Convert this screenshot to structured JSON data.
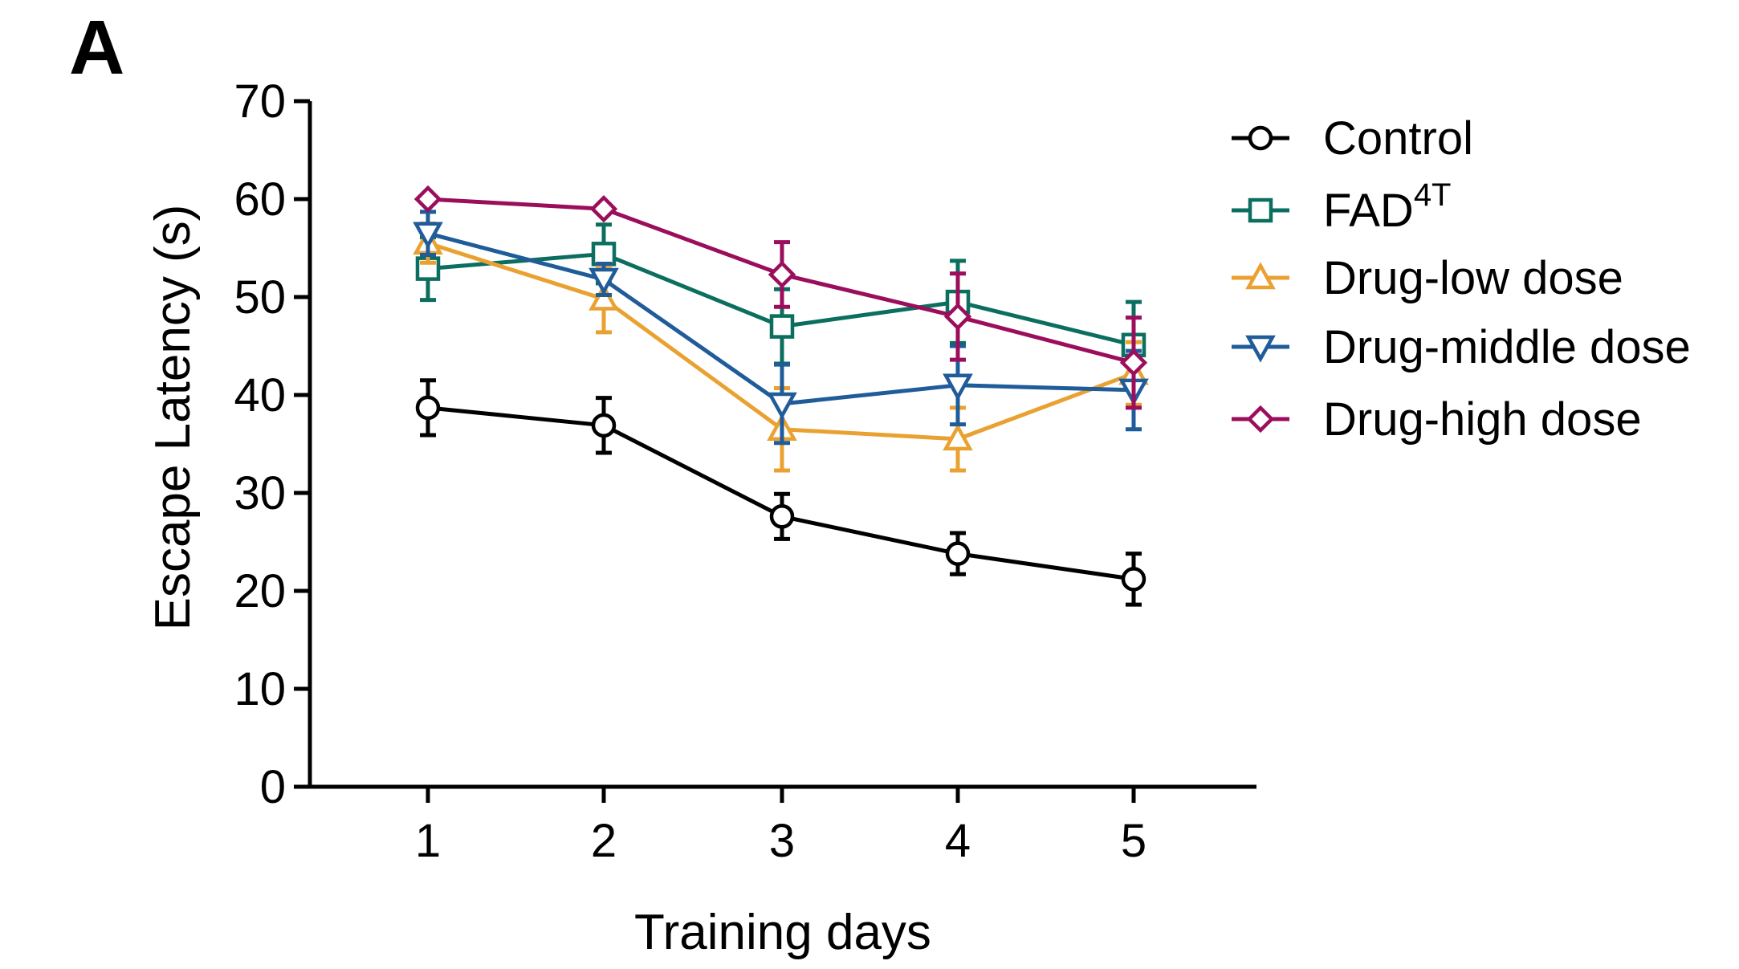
{
  "panel_label": "A",
  "chart_data": {
    "type": "line",
    "title": "",
    "xlabel": "Training days",
    "ylabel": "Escape Latency (s)",
    "x": [
      1,
      2,
      3,
      4,
      5
    ],
    "xticks": [
      "1",
      "2",
      "3",
      "4",
      "5"
    ],
    "ylim": [
      0,
      70
    ],
    "yticks": [
      0,
      10,
      20,
      30,
      40,
      50,
      60,
      70
    ],
    "ytick_labels": [
      "0",
      "10",
      "20",
      "30",
      "40",
      "50",
      "60",
      "70"
    ],
    "grid": false,
    "legend_position": "right",
    "series": [
      {
        "name": "Control",
        "name_base": "Control",
        "name_sup": "",
        "color": "#000000",
        "marker": "circle",
        "values": [
          38.7,
          36.9,
          27.6,
          23.8,
          21.2
        ],
        "errors": [
          2.8,
          2.8,
          2.3,
          2.1,
          2.6
        ]
      },
      {
        "name": "FAD4T",
        "name_base": "FAD",
        "name_sup": "4T",
        "color": "#0B6E5F",
        "marker": "square",
        "values": [
          52.9,
          54.4,
          47.0,
          49.5,
          45.1
        ],
        "errors": [
          3.2,
          3.0,
          3.8,
          4.2,
          4.4
        ]
      },
      {
        "name": "Drug-low dose",
        "name_base": "Drug-low dose",
        "name_sup": "",
        "color": "#E9A232",
        "marker": "triangle-up",
        "values": [
          55.5,
          49.8,
          36.5,
          35.5,
          42.2
        ],
        "errors": [
          2.0,
          3.4,
          4.2,
          3.2,
          3.2
        ]
      },
      {
        "name": "Drug-middle dose",
        "name_base": "Drug-middle dose",
        "name_sup": "",
        "color": "#1F5C99",
        "marker": "triangle-down",
        "values": [
          56.5,
          51.8,
          39.1,
          41.0,
          40.5
        ],
        "errors": [
          2.2,
          1.6,
          4.0,
          4.0,
          4.0
        ]
      },
      {
        "name": "Drug-high dose",
        "name_base": "Drug-high dose",
        "name_sup": "",
        "color": "#9B0E5C",
        "marker": "diamond",
        "values": [
          60.0,
          59.0,
          52.3,
          48.0,
          43.3
        ],
        "errors": [
          0.0,
          0.0,
          3.3,
          4.4,
          4.6
        ]
      }
    ]
  }
}
